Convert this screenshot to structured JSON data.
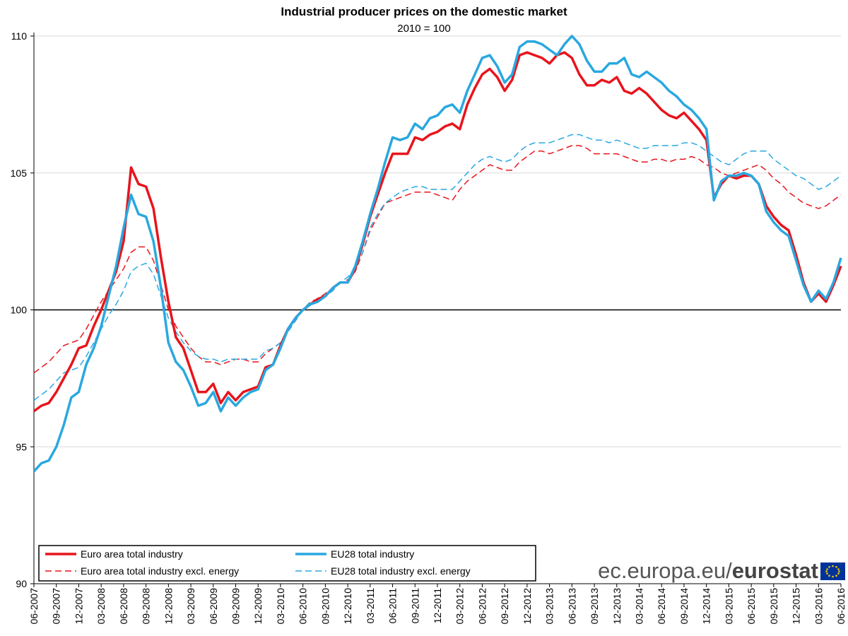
{
  "chart_data": {
    "type": "line",
    "title": "Industrial producer prices on the domestic market",
    "subtitle": "2010 = 100",
    "source": "ec.europa.eu/",
    "source_brand": "eurostat",
    "categories": [
      "06-2007",
      null,
      null,
      "09-2007",
      null,
      null,
      "12-2007",
      null,
      null,
      "03-2008",
      null,
      null,
      "06-2008",
      null,
      null,
      "09-2008",
      null,
      null,
      "12-2008",
      null,
      null,
      "03-2009",
      null,
      null,
      "06-2009",
      null,
      null,
      "09-2009",
      null,
      null,
      "12-2009",
      null,
      null,
      "03-2010",
      null,
      null,
      "06-2010",
      null,
      null,
      "09-2010",
      null,
      null,
      "12-2010",
      null,
      null,
      "03-2011",
      null,
      null,
      "06-2011",
      null,
      null,
      "09-2011",
      null,
      null,
      "12-2011",
      null,
      null,
      "03-2012",
      null,
      null,
      "06-2012",
      null,
      null,
      "09-2012",
      null,
      null,
      "12-2012",
      null,
      null,
      "03-2013",
      null,
      null,
      "06-2013",
      null,
      null,
      "09-2013",
      null,
      null,
      "12-2013",
      null,
      null,
      "03-2014",
      null,
      null,
      "06-2014",
      null,
      null,
      "09-2014",
      null,
      null,
      "12-2014",
      null,
      null,
      "03-2015",
      null,
      null,
      "06-2015",
      null,
      null,
      "09-2015",
      null,
      null,
      "12-2015",
      null,
      null,
      "03-2016",
      null,
      null,
      "06-2016"
    ],
    "series": [
      {
        "name": "Euro area total industry",
        "color": "#e8141c",
        "dashed": false,
        "values": [
          96.3,
          96.5,
          96.6,
          97.0,
          97.5,
          98.0,
          98.6,
          98.7,
          99.4,
          100.0,
          100.7,
          101.4,
          102.5,
          105.2,
          104.6,
          104.5,
          103.7,
          101.9,
          100.3,
          99.0,
          98.6,
          97.8,
          97.0,
          97.0,
          97.3,
          96.6,
          97.0,
          96.7,
          97.0,
          97.1,
          97.2,
          97.9,
          98.0,
          98.7,
          99.3,
          99.7,
          100.0,
          100.2,
          100.4,
          100.5,
          100.8,
          101.0,
          101.0,
          101.5,
          102.4,
          103.4,
          104.2,
          105.0,
          105.7,
          105.7,
          105.7,
          106.3,
          106.2,
          106.4,
          106.5,
          106.7,
          106.8,
          106.6,
          107.5,
          108.1,
          108.6,
          108.8,
          108.5,
          108.0,
          108.4,
          109.3,
          109.4,
          109.3,
          109.2,
          109.0,
          109.3,
          109.4,
          109.2,
          108.6,
          108.2,
          108.2,
          108.4,
          108.3,
          108.5,
          108.0,
          107.9,
          108.1,
          107.9,
          107.6,
          107.3,
          107.1,
          107.0,
          107.2,
          106.9,
          106.6,
          106.2,
          104.1,
          104.6,
          104.9,
          104.8,
          104.9,
          104.9,
          104.6,
          103.8,
          103.4,
          103.1,
          102.9,
          102.0,
          101.0,
          100.3,
          100.6,
          100.3,
          100.9,
          101.6
        ]
      },
      {
        "name": "EU28 total industry",
        "color": "#29a8e0",
        "dashed": false,
        "values": [
          94.1,
          94.4,
          94.5,
          95.0,
          95.8,
          96.8,
          97.0,
          98.0,
          98.6,
          99.4,
          100.5,
          101.6,
          103.0,
          104.2,
          103.5,
          103.4,
          102.5,
          100.8,
          98.8,
          98.1,
          97.8,
          97.2,
          96.5,
          96.6,
          97.0,
          96.3,
          96.8,
          96.5,
          96.8,
          97.0,
          97.1,
          97.8,
          98.0,
          98.6,
          99.3,
          99.7,
          100.0,
          100.2,
          100.3,
          100.5,
          100.8,
          101.0,
          101.0,
          101.6,
          102.5,
          103.5,
          104.4,
          105.4,
          106.3,
          106.2,
          106.3,
          106.8,
          106.6,
          107.0,
          107.1,
          107.4,
          107.5,
          107.2,
          108.0,
          108.6,
          109.2,
          109.3,
          108.9,
          108.3,
          108.6,
          109.6,
          109.8,
          109.8,
          109.7,
          109.5,
          109.3,
          109.7,
          110.0,
          109.7,
          109.1,
          108.7,
          108.7,
          109.0,
          109.0,
          109.2,
          108.6,
          108.5,
          108.7,
          108.5,
          108.3,
          108.0,
          107.8,
          107.5,
          107.3,
          107.0,
          106.6,
          104.0,
          104.7,
          104.9,
          104.9,
          105.0,
          104.9,
          104.6,
          103.6,
          103.2,
          102.9,
          102.7,
          101.8,
          100.9,
          100.3,
          100.7,
          100.4,
          101.0,
          101.9
        ]
      },
      {
        "name": "Euro area total industry excl. energy",
        "color": "#e8141c",
        "dashed": true,
        "values": [
          97.7,
          97.9,
          98.1,
          98.4,
          98.7,
          98.8,
          98.9,
          99.3,
          99.8,
          100.3,
          100.7,
          101.1,
          101.5,
          102.1,
          102.3,
          102.3,
          101.8,
          100.9,
          100.0,
          99.4,
          99.0,
          98.6,
          98.3,
          98.1,
          98.1,
          98.0,
          98.1,
          98.2,
          98.2,
          98.1,
          98.1,
          98.4,
          98.6,
          98.8,
          99.3,
          99.6,
          100.0,
          100.3,
          100.4,
          100.6,
          100.8,
          101.0,
          101.1,
          101.4,
          102.1,
          102.9,
          103.4,
          103.9,
          104.0,
          104.1,
          104.2,
          104.3,
          104.3,
          104.3,
          104.2,
          104.1,
          104.0,
          104.4,
          104.7,
          104.9,
          105.1,
          105.3,
          105.2,
          105.1,
          105.1,
          105.4,
          105.6,
          105.8,
          105.8,
          105.7,
          105.8,
          105.9,
          106.0,
          106.0,
          105.9,
          105.7,
          105.7,
          105.7,
          105.7,
          105.6,
          105.5,
          105.4,
          105.4,
          105.5,
          105.5,
          105.4,
          105.5,
          105.5,
          105.6,
          105.5,
          105.3,
          105.2,
          105.0,
          104.9,
          105.0,
          105.1,
          105.2,
          105.3,
          105.1,
          104.8,
          104.6,
          104.3,
          104.1,
          103.9,
          103.8,
          103.7,
          103.8,
          104.0,
          104.2
        ]
      },
      {
        "name": "EU28 total industry excl. energy",
        "color": "#29a8e0",
        "dashed": true,
        "values": [
          96.7,
          96.9,
          97.1,
          97.4,
          97.7,
          97.8,
          97.9,
          98.3,
          98.8,
          99.3,
          99.8,
          100.2,
          100.7,
          101.4,
          101.6,
          101.7,
          101.3,
          100.5,
          99.7,
          99.2,
          98.8,
          98.5,
          98.3,
          98.2,
          98.2,
          98.1,
          98.2,
          98.2,
          98.2,
          98.2,
          98.2,
          98.5,
          98.6,
          98.8,
          99.2,
          99.6,
          100.0,
          100.3,
          100.3,
          100.5,
          100.7,
          101.0,
          101.2,
          101.5,
          102.1,
          103.0,
          103.5,
          103.9,
          104.1,
          104.3,
          104.4,
          104.5,
          104.5,
          104.4,
          104.4,
          104.4,
          104.4,
          104.7,
          105.0,
          105.3,
          105.5,
          105.6,
          105.5,
          105.4,
          105.5,
          105.8,
          106.0,
          106.1,
          106.1,
          106.1,
          106.2,
          106.3,
          106.4,
          106.4,
          106.3,
          106.2,
          106.2,
          106.1,
          106.2,
          106.1,
          106.0,
          105.9,
          105.9,
          106.0,
          106.0,
          106.0,
          106.0,
          106.1,
          106.1,
          106.0,
          105.8,
          105.6,
          105.4,
          105.3,
          105.5,
          105.7,
          105.8,
          105.8,
          105.8,
          105.5,
          105.3,
          105.1,
          104.9,
          104.8,
          104.6,
          104.4,
          104.5,
          104.7,
          104.9
        ]
      }
    ],
    "ylim": [
      90,
      110
    ],
    "yticks": [
      90,
      95,
      100,
      105,
      110
    ],
    "baseline": 100,
    "grid": true
  }
}
